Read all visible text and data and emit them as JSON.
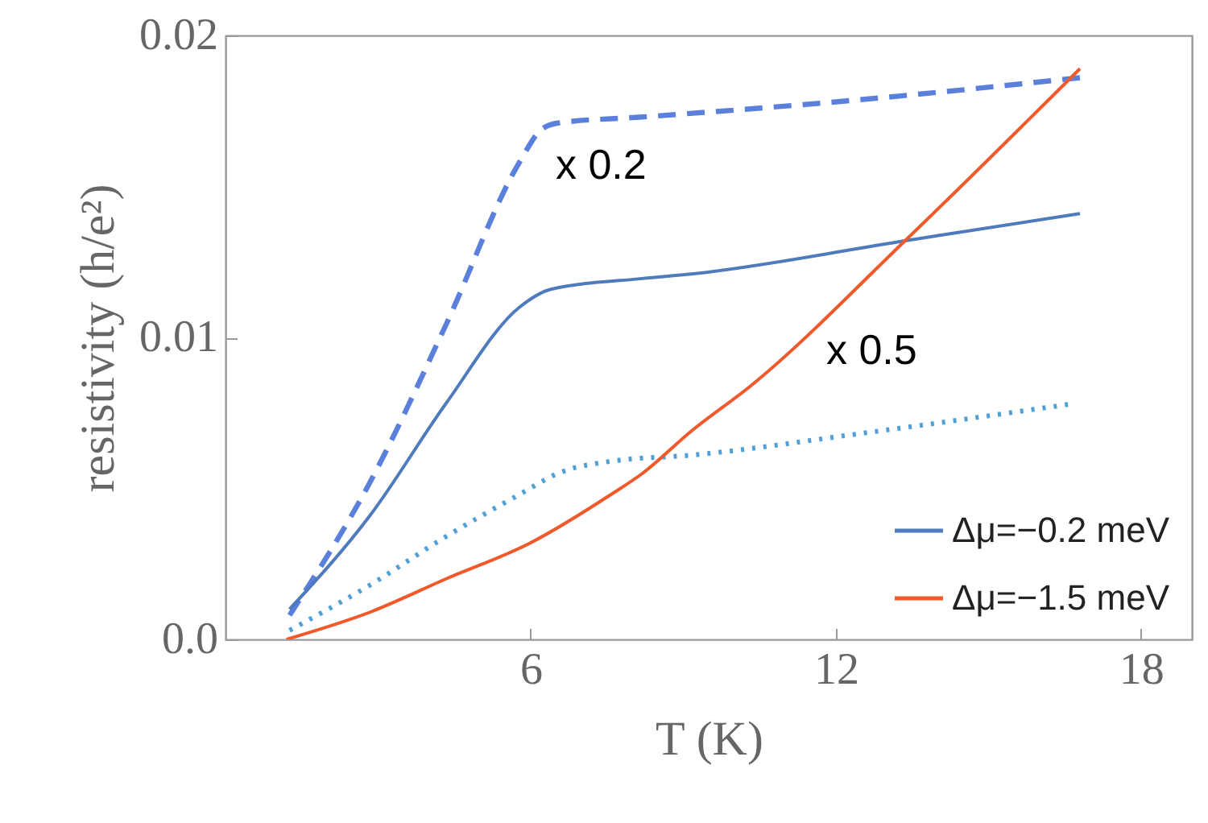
{
  "chart_data": {
    "type": "line",
    "xlabel": "T (K)",
    "ylabel": "resistivity (h/e²)",
    "xlim": [
      0,
      19
    ],
    "ylim": [
      0,
      0.02
    ],
    "xticks": [
      6,
      12,
      18
    ],
    "yticks": [
      {
        "value": 0,
        "label": "0.0"
      },
      0.01,
      0.02
    ],
    "grid": false,
    "legend": "bottom right",
    "series": [
      {
        "color": "#5b80dc",
        "line_style": "dashed",
        "x": [
          1.26,
          2.84,
          4.33,
          5.78,
          6.22,
          6.54,
          8.2,
          12.0,
          16.8
        ],
        "values": [
          0.0008,
          0.0052,
          0.0104,
          0.0158,
          0.0169,
          0.0171,
          0.0173,
          0.0178,
          0.0186
        ]
      },
      {
        "name": "Δμ=−0.2 meV",
        "color": "#4f7bbd",
        "line_style": "solid",
        "x": [
          1.26,
          2.84,
          4.33,
          5.78,
          6.41,
          8.2,
          9.16,
          13.36,
          16.8
        ],
        "values": [
          0.001,
          0.0041,
          0.0078,
          0.011,
          0.0116,
          0.01195,
          0.0121,
          0.0132,
          0.0141
        ]
      },
      {
        "color": "#4fa0d6",
        "line_style": "dotted",
        "x": [
          1.26,
          2.84,
          4.33,
          5.78,
          6.54,
          7.58,
          9.16,
          12.41,
          16.64
        ],
        "values": [
          0.0003,
          0.0018,
          0.0034,
          0.0048,
          0.0055,
          0.0059,
          0.0061,
          0.0068,
          0.0078
        ]
      },
      {
        "name": "Δμ=−1.5 meV",
        "color": "#f0592a",
        "line_style": "solid",
        "x": [
          1.2,
          2.84,
          4.33,
          6.0,
          7.58,
          8.2,
          9.16,
          10.33,
          13.36,
          16.8
        ],
        "values": [
          0,
          0.0009,
          0.002,
          0.0032,
          0.0048,
          0.0055,
          0.0069,
          0.0084,
          0.0132,
          0.0189
        ]
      }
    ],
    "annotations": [
      "x 0.2",
      "x 0.5"
    ]
  }
}
